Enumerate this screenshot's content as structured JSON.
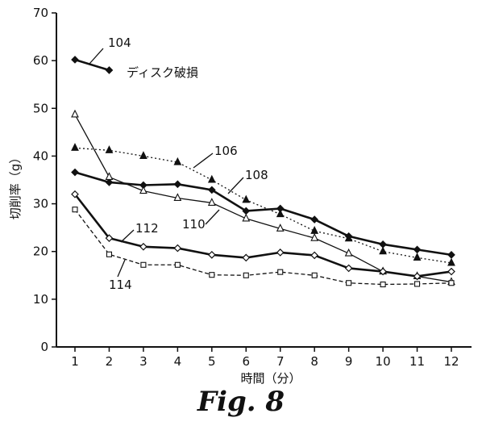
{
  "caption": "Fig. 8",
  "chart_data": {
    "type": "line",
    "xlabel": "時間（分）",
    "ylabel": "切削率（g）",
    "xlim": [
      1,
      12
    ],
    "ylim": [
      0,
      70
    ],
    "x_ticks": [
      1,
      2,
      3,
      4,
      5,
      6,
      7,
      8,
      9,
      10,
      11,
      12
    ],
    "y_ticks": [
      0,
      10,
      20,
      30,
      40,
      50,
      60,
      70
    ],
    "grid": false,
    "series": [
      {
        "name": "104",
        "marker": "diamond-filled",
        "style": "solid",
        "weight": "bold",
        "x": [
          1,
          2
        ],
        "values": [
          60.2,
          58.0
        ]
      },
      {
        "name": "106",
        "marker": "triangle-filled",
        "style": "dotted",
        "weight": "thin",
        "x": [
          1,
          2,
          3,
          4,
          5,
          6,
          7,
          8,
          9,
          10,
          11,
          12
        ],
        "values": [
          41.7,
          41.2,
          40.0,
          38.7,
          35.0,
          30.8,
          27.8,
          24.3,
          22.7,
          20.0,
          18.7,
          17.6
        ]
      },
      {
        "name": "108",
        "marker": "diamond-filled",
        "style": "solid",
        "weight": "bold",
        "x": [
          1,
          2,
          3,
          4,
          5,
          6,
          7,
          8,
          9,
          10,
          11,
          12
        ],
        "values": [
          36.6,
          34.5,
          33.9,
          34.1,
          32.9,
          28.5,
          29.0,
          26.7,
          23.2,
          21.5,
          20.4,
          19.3
        ]
      },
      {
        "name": "110",
        "marker": "triangle-open",
        "style": "solid",
        "weight": "thin",
        "x": [
          1,
          2,
          3,
          4,
          5,
          6,
          7,
          8,
          9,
          10,
          11,
          12
        ],
        "values": [
          48.7,
          35.6,
          32.7,
          31.2,
          30.2,
          26.9,
          24.8,
          22.8,
          19.6,
          15.8,
          14.8,
          13.6
        ]
      },
      {
        "name": "112",
        "marker": "diamond-open",
        "style": "solid",
        "weight": "bold",
        "x": [
          1,
          2,
          3,
          4,
          5,
          6,
          7,
          8,
          9,
          10,
          11,
          12
        ],
        "values": [
          32.0,
          22.8,
          21.0,
          20.7,
          19.3,
          18.7,
          19.8,
          19.2,
          16.5,
          15.8,
          14.8,
          15.8
        ]
      },
      {
        "name": "114",
        "marker": "square-open",
        "style": "dashed",
        "weight": "thin",
        "x": [
          1,
          2,
          3,
          4,
          5,
          6,
          7,
          8,
          9,
          10,
          11,
          12
        ],
        "values": [
          28.8,
          19.4,
          17.2,
          17.2,
          15.1,
          15.0,
          15.7,
          15.0,
          13.4,
          13.1,
          13.2,
          13.4
        ]
      }
    ],
    "annotations": [
      {
        "text": "104",
        "target_series": "104"
      },
      {
        "text": "ディスク破損",
        "target_series": "104"
      },
      {
        "text": "106",
        "target_series": "106"
      },
      {
        "text": "108",
        "target_series": "108"
      },
      {
        "text": "110",
        "target_series": "110"
      },
      {
        "text": "112",
        "target_series": "112"
      },
      {
        "text": "114",
        "target_series": "114"
      }
    ]
  }
}
